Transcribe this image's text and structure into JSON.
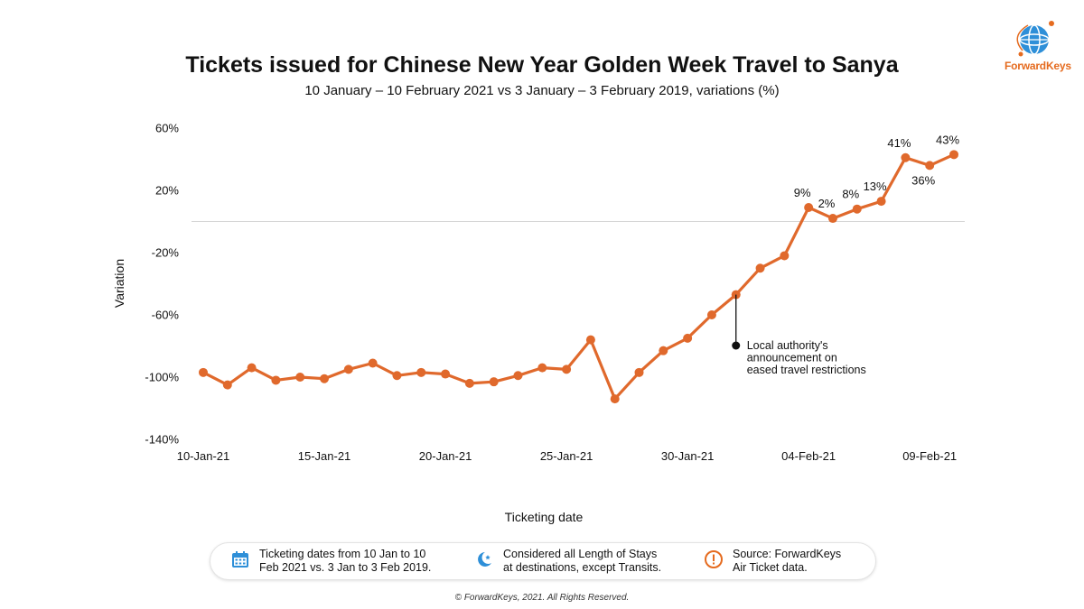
{
  "header": {
    "title": "Tickets issued for Chinese New Year Golden Week Travel to Sanya",
    "subtitle": "10 January – 10 February 2021 vs 3 January – 3 February 2019, variations (%)"
  },
  "logo": {
    "text": "ForwardKeys",
    "icon": "globe-icon",
    "color": "#e56b1f",
    "globe_color": "#2e8fd8"
  },
  "chart_data": {
    "type": "line",
    "xlabel": "Ticketing date",
    "ylabel": "Variation",
    "ylim": [
      -140,
      60
    ],
    "yticks": [
      60,
      20,
      -20,
      -60,
      -100,
      -140
    ],
    "ytick_labels": [
      "60%",
      "20%",
      "-20%",
      "-60%",
      "-100%",
      "-140%"
    ],
    "xtick_labels": [
      "10-Jan-21",
      "15-Jan-21",
      "20-Jan-21",
      "25-Jan-21",
      "30-Jan-21",
      "04-Feb-21",
      "09-Feb-21"
    ],
    "xtick_indices": [
      0,
      5,
      10,
      15,
      20,
      25,
      30
    ],
    "line_color": "#e0692c",
    "grid": false,
    "zero_line": true,
    "x": [
      "10-Jan-21",
      "11-Jan-21",
      "12-Jan-21",
      "13-Jan-21",
      "14-Jan-21",
      "15-Jan-21",
      "16-Jan-21",
      "17-Jan-21",
      "18-Jan-21",
      "19-Jan-21",
      "20-Jan-21",
      "21-Jan-21",
      "22-Jan-21",
      "23-Jan-21",
      "24-Jan-21",
      "25-Jan-21",
      "26-Jan-21",
      "27-Jan-21",
      "28-Jan-21",
      "29-Jan-21",
      "30-Jan-21",
      "31-Jan-21",
      "01-Feb-21",
      "02-Feb-21",
      "03-Feb-21",
      "04-Feb-21",
      "05-Feb-21",
      "06-Feb-21",
      "07-Feb-21",
      "08-Feb-21",
      "09-Feb-21",
      "10-Feb-21"
    ],
    "series": [
      {
        "values": [
          -97,
          -105,
          -94,
          -102,
          -100,
          -101,
          -95,
          -91,
          -99,
          -97,
          -98,
          -104,
          -103,
          -99,
          -94,
          -95,
          -76,
          -114,
          -97,
          -83,
          -75,
          -60,
          -47,
          -30,
          -22,
          9,
          2,
          8,
          13,
          41,
          36,
          43
        ]
      }
    ],
    "data_labels": [
      {
        "index": 25,
        "text": "9%",
        "pos": "above"
      },
      {
        "index": 26,
        "text": "2%",
        "pos": "above"
      },
      {
        "index": 27,
        "text": "8%",
        "pos": "above"
      },
      {
        "index": 28,
        "text": "13%",
        "pos": "above"
      },
      {
        "index": 29,
        "text": "41%",
        "pos": "above"
      },
      {
        "index": 30,
        "text": "36%",
        "pos": "below"
      },
      {
        "index": 31,
        "text": "43%",
        "pos": "above"
      }
    ],
    "annotation": {
      "index": 22,
      "lines": [
        "Local authority's",
        "announcement on",
        "eased travel restrictions"
      ]
    }
  },
  "info": [
    {
      "icon": "calendar-icon",
      "color": "#2e8fd8",
      "lines": [
        "Ticketing dates from 10 Jan to 10",
        "Feb 2021 vs. 3 Jan to 3 Feb 2019."
      ]
    },
    {
      "icon": "moon-star-icon",
      "color": "#2e8fd8",
      "lines": [
        "Considered all Length of Stays",
        "at destinations, except Transits."
      ]
    },
    {
      "icon": "alert-icon",
      "color": "#e56b1f",
      "lines": [
        "Source: ForwardKeys",
        "Air Ticket data."
      ]
    }
  ],
  "footer": "© ForwardKeys, 2021. All Rights Reserved."
}
